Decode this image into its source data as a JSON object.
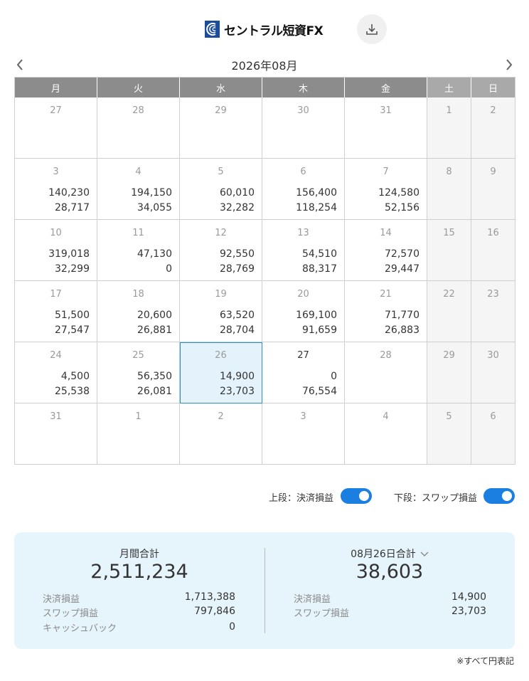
{
  "header": {
    "logo_text": "セントラル短資FX",
    "logo_icon": "logo-mark",
    "download_icon": "download-icon"
  },
  "nav": {
    "month": "2026年08月",
    "prev_icon": "chevron-left-icon",
    "next_icon": "chevron-right-icon"
  },
  "weekdays": [
    "月",
    "火",
    "水",
    "木",
    "金",
    "土",
    "日"
  ],
  "weeks": [
    [
      {
        "d": "27",
        "a": "",
        "b": ""
      },
      {
        "d": "28",
        "a": "",
        "b": ""
      },
      {
        "d": "29",
        "a": "",
        "b": ""
      },
      {
        "d": "30",
        "a": "",
        "b": ""
      },
      {
        "d": "31",
        "a": "",
        "b": ""
      },
      {
        "d": "1"
      },
      {
        "d": "2"
      }
    ],
    [
      {
        "d": "3",
        "a": "140,230",
        "b": "28,717"
      },
      {
        "d": "4",
        "a": "194,150",
        "b": "34,055"
      },
      {
        "d": "5",
        "a": "60,010",
        "b": "32,282"
      },
      {
        "d": "6",
        "a": "156,400",
        "b": "118,254"
      },
      {
        "d": "7",
        "a": "124,580",
        "b": "52,156"
      },
      {
        "d": "8"
      },
      {
        "d": "9"
      }
    ],
    [
      {
        "d": "10",
        "a": "319,018",
        "b": "32,299"
      },
      {
        "d": "11",
        "a": "47,130",
        "b": "0"
      },
      {
        "d": "12",
        "a": "92,550",
        "b": "28,769"
      },
      {
        "d": "13",
        "a": "54,510",
        "b": "88,317"
      },
      {
        "d": "14",
        "a": "72,570",
        "b": "29,447"
      },
      {
        "d": "15"
      },
      {
        "d": "16"
      }
    ],
    [
      {
        "d": "17",
        "a": "51,500",
        "b": "27,547"
      },
      {
        "d": "18",
        "a": "20,600",
        "b": "26,881"
      },
      {
        "d": "19",
        "a": "63,520",
        "b": "28,704"
      },
      {
        "d": "20",
        "a": "169,100",
        "b": "91,659"
      },
      {
        "d": "21",
        "a": "71,770",
        "b": "26,883"
      },
      {
        "d": "22"
      },
      {
        "d": "23"
      }
    ],
    [
      {
        "d": "24",
        "a": "4,500",
        "b": "25,538"
      },
      {
        "d": "25",
        "a": "56,350",
        "b": "26,081"
      },
      {
        "d": "26",
        "a": "14,900",
        "b": "23,703"
      },
      {
        "d": "27",
        "a": "0",
        "b": "76,554"
      },
      {
        "d": "28",
        "a": "",
        "b": ""
      },
      {
        "d": "29"
      },
      {
        "d": "30"
      }
    ],
    [
      {
        "d": "31",
        "a": "",
        "b": ""
      },
      {
        "d": "1",
        "a": "",
        "b": ""
      },
      {
        "d": "2",
        "a": "",
        "b": ""
      },
      {
        "d": "3",
        "a": "",
        "b": ""
      },
      {
        "d": "4",
        "a": "",
        "b": ""
      },
      {
        "d": "5"
      },
      {
        "d": "6"
      }
    ]
  ],
  "toggles": {
    "upper_label": "上段：決済損益",
    "lower_label": "下段：スワップ損益",
    "upper_on": true,
    "lower_on": true
  },
  "summary": {
    "monthly": {
      "title": "月間合計",
      "total": "2,511,234",
      "rows": [
        {
          "label": "決済損益",
          "value": "1,713,388"
        },
        {
          "label": "スワップ損益",
          "value": "797,846"
        },
        {
          "label": "キャッシュバック",
          "value": "0"
        }
      ]
    },
    "daily": {
      "title": "08月26日合計",
      "total": "38,603",
      "rows": [
        {
          "label": "決済損益",
          "value": "14,900"
        },
        {
          "label": "スワップ損益",
          "value": "23,703"
        }
      ]
    }
  },
  "footnote": "※すべて円表記",
  "colors": {
    "accent": "#1a7fe0",
    "header_gray": "#8c8c8c",
    "weekend_header": "#a9a9a9",
    "selected_bg": "#e4f3fb",
    "summary_bg": "#e6f4fc"
  }
}
